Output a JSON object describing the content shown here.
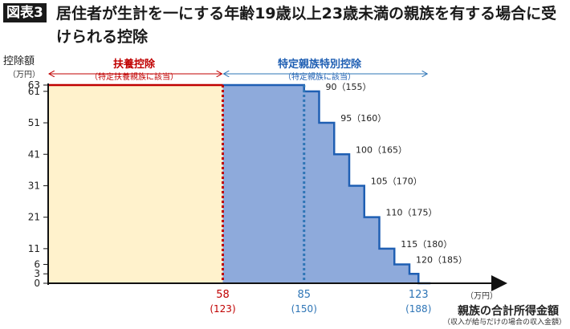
{
  "header": {
    "badge": "図表3",
    "title": "居住者が生計を一にする年齢19歳以上23歳未満の親族を有する場合に受けられる控除"
  },
  "chart_data": {
    "type": "area",
    "ylabel": "控除額",
    "yunit": "（万円）",
    "xlabel": "親族の合計所得金額",
    "xlabel_sub": "（収入が給与だけの場合の収入金額）",
    "xunit": "（万円）",
    "ylim": [
      0,
      63
    ],
    "y_ticks": [
      "0",
      "3",
      "6",
      "11",
      "21",
      "31",
      "41",
      "51",
      "61",
      "63"
    ],
    "y_tick_values": [
      0,
      3,
      6,
      11,
      21,
      31,
      41,
      51,
      61,
      63
    ],
    "x_ticks": [
      {
        "value": 58,
        "label": "58",
        "sub": "(123)",
        "color": "#c00000"
      },
      {
        "value": 85,
        "label": "85",
        "sub": "(150)",
        "color": "#2e75b6"
      },
      {
        "value": 123,
        "label": "123",
        "sub": "(188)",
        "color": "#2e75b6"
      }
    ],
    "regions": [
      {
        "name": "扶養控除",
        "sub": "（特定扶養親族に該当）",
        "x_start": 0,
        "x_end": 58,
        "fill": "#fff2cc",
        "line": "#c00000"
      },
      {
        "name": "特定親族特別控除",
        "sub": "（特定親族に該当）",
        "x_start": 58,
        "x_end": 123,
        "fill": "#8eaadb",
        "line": "#1f5fb3"
      }
    ],
    "steps": [
      {
        "x0": 58,
        "x1": 85,
        "y": 63
      },
      {
        "x0": 85,
        "x1": 90,
        "y": 61
      },
      {
        "x0": 90,
        "x1": 95,
        "y": 51
      },
      {
        "x0": 95,
        "x1": 100,
        "y": 41
      },
      {
        "x0": 100,
        "x1": 105,
        "y": 31
      },
      {
        "x0": 105,
        "x1": 110,
        "y": 21
      },
      {
        "x0": 110,
        "x1": 115,
        "y": 11
      },
      {
        "x0": 115,
        "x1": 120,
        "y": 6
      },
      {
        "x0": 120,
        "x1": 123,
        "y": 3
      },
      {
        "x0": 123,
        "x1": 127,
        "y": 0
      }
    ],
    "step_labels": [
      {
        "x": 90,
        "y": 61,
        "label": "90（155）"
      },
      {
        "x": 95,
        "y": 51,
        "label": "95（160）"
      },
      {
        "x": 100,
        "y": 41,
        "label": "100（165）"
      },
      {
        "x": 105,
        "y": 31,
        "label": "105（170）"
      },
      {
        "x": 110,
        "y": 21,
        "label": "110（175）"
      },
      {
        "x": 115,
        "y": 11,
        "label": "115（180）"
      },
      {
        "x": 120,
        "y": 6,
        "label": "120（185）"
      }
    ]
  }
}
